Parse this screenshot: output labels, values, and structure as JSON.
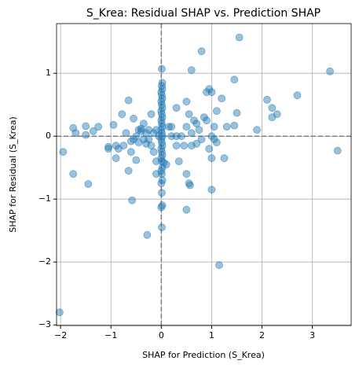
{
  "chart_data": {
    "type": "scatter",
    "title": "S_Krea: Residual SHAP vs. Prediction SHAP",
    "x_label": "SHAP for Prediction (S_Krea)",
    "y_label": "SHAP for Residual (S_Krea)",
    "color": "#1f77b4",
    "grid": true,
    "hlines": [
      0
    ],
    "vlines": [
      0
    ],
    "xlim": [
      -2.08,
      3.77
    ],
    "ylim": [
      -3.01,
      1.79
    ],
    "xticks": [
      {
        "value": -2,
        "label": "−2"
      },
      {
        "value": -1,
        "label": "−1"
      },
      0,
      1,
      2,
      3
    ],
    "yticks": [
      {
        "value": -3,
        "label": "−3"
      },
      {
        "value": -2,
        "label": "−2"
      },
      {
        "value": -1,
        "label": "−1"
      },
      0,
      1
    ],
    "x": [
      -2.02,
      -1.95,
      -1.75,
      -1.75,
      -1.7,
      -1.5,
      -1.5,
      -1.45,
      -1.35,
      -1.25,
      -1.05,
      -1.05,
      -0.95,
      -0.9,
      -0.9,
      -0.85,
      -0.78,
      -0.75,
      -0.7,
      -0.65,
      -0.65,
      -0.6,
      -0.58,
      -0.55,
      -0.55,
      -0.5,
      -0.5,
      -0.45,
      -0.4,
      -0.35,
      -0.35,
      -0.3,
      -0.3,
      -0.28,
      -0.25,
      -0.2,
      -0.2,
      -0.15,
      -0.1,
      -0.1,
      -0.1,
      -0.05,
      -0.6,
      -0.45,
      -0.4,
      -0.25,
      -0.15,
      0.01,
      0.02,
      0.01,
      0.02,
      0.0,
      0.01,
      0.02,
      0.0,
      0.01,
      0.02,
      0.0,
      0.01,
      0.02,
      0.0,
      0.01,
      0.02,
      0.0,
      0.01,
      0.02,
      0.0,
      0.01,
      0.02,
      0.0,
      0.01,
      0.02,
      0.0,
      0.01,
      0.02,
      0.0,
      0.01,
      0.02,
      0.0,
      0.01,
      0.02,
      0.0,
      0.01,
      0.05,
      0.1,
      0.15,
      0.2,
      0.3,
      0.3,
      0.35,
      0.4,
      0.45,
      0.5,
      0.5,
      0.5,
      0.5,
      0.55,
      0.55,
      0.6,
      0.6,
      0.6,
      0.65,
      0.7,
      0.75,
      0.8,
      0.85,
      0.9,
      0.9,
      0.95,
      1.0,
      1.0,
      1.0,
      1.0,
      1.05,
      1.1,
      1.15,
      1.2,
      1.25,
      1.3,
      1.45,
      1.5,
      1.55,
      1.45,
      1.9,
      2.1,
      2.2,
      2.2,
      2.3,
      2.7,
      3.35,
      3.5,
      1.05,
      0.95,
      1.1,
      0.8,
      0.7,
      0.57,
      0.3,
      0.2
    ],
    "values": [
      -2.8,
      -0.25,
      0.13,
      -0.6,
      0.05,
      0.16,
      0.02,
      -0.76,
      0.08,
      0.15,
      -0.17,
      -0.2,
      0.18,
      -0.15,
      -0.35,
      -0.2,
      0.35,
      -0.15,
      0.05,
      0.57,
      -0.55,
      -0.25,
      -1.02,
      0.28,
      -0.05,
      0.0,
      -0.38,
      0.1,
      0.08,
      0.2,
      -0.05,
      0.05,
      -0.12,
      -1.57,
      -0.05,
      0.35,
      -0.15,
      -0.25,
      0.1,
      -0.4,
      -0.6,
      0.0,
      -0.08,
      -0.1,
      0.12,
      0.1,
      0.05,
      1.07,
      0.85,
      0.8,
      0.75,
      0.7,
      0.65,
      0.6,
      0.55,
      0.5,
      0.45,
      0.4,
      0.35,
      0.3,
      0.25,
      0.2,
      0.15,
      0.1,
      0.05,
      0.0,
      -0.05,
      -0.1,
      -0.15,
      -0.2,
      -0.25,
      -0.3,
      -0.35,
      -0.4,
      -0.5,
      -0.55,
      -0.6,
      -0.7,
      -0.75,
      -0.9,
      -1.1,
      -1.13,
      -1.45,
      -0.42,
      -0.45,
      0.15,
      0.0,
      0.45,
      -0.15,
      -0.4,
      0.0,
      -0.15,
      0.55,
      0.15,
      -0.6,
      -1.17,
      -0.75,
      0.35,
      1.05,
      0.05,
      -0.15,
      0.25,
      0.2,
      0.1,
      1.35,
      0.3,
      0.7,
      0.25,
      0.75,
      0.7,
      0.0,
      -0.35,
      -0.85,
      0.15,
      0.4,
      -2.05,
      0.6,
      -0.35,
      0.15,
      0.17,
      0.37,
      1.57,
      0.9,
      0.1,
      0.58,
      0.45,
      0.3,
      0.35,
      0.65,
      1.03,
      -0.23,
      -0.05,
      -0.2,
      -0.1,
      -0.05,
      -0.12,
      -0.78,
      0.0,
      0.15
    ]
  }
}
